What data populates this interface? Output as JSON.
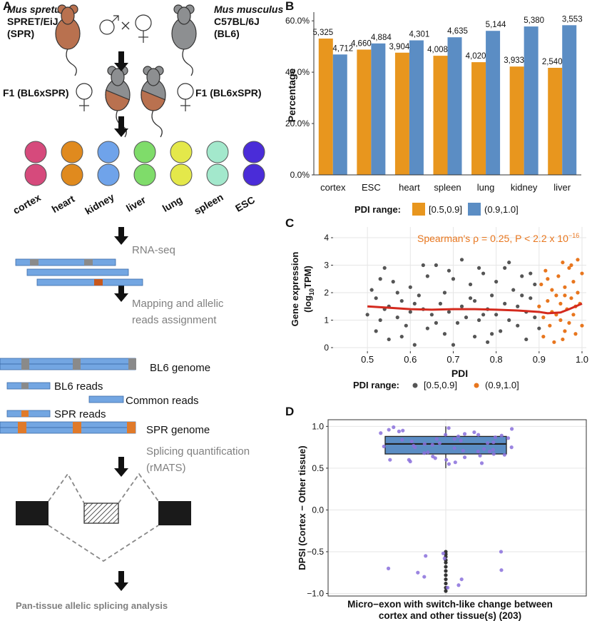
{
  "panel_labels": [
    "A",
    "B",
    "C",
    "D"
  ],
  "diagram": {
    "parent_left": {
      "species": "Mus spretus",
      "strain": "SPRET/EiJ",
      "abbr": "(SPR)"
    },
    "parent_right": {
      "species": "Mus musculus",
      "strain": "C57BL/6J",
      "abbr": "(BL6)"
    },
    "f1_left": "F1 (BL6xSPR)",
    "f1_right": "F1 (BL6xSPR)",
    "tissues": [
      {
        "label": "cortex",
        "color": "#d64a7c"
      },
      {
        "label": "heart",
        "color": "#e08a1e"
      },
      {
        "label": "kidney",
        "color": "#6fa3ea"
      },
      {
        "label": "liver",
        "color": "#7fdc6a"
      },
      {
        "label": "lung",
        "color": "#e4e84a"
      },
      {
        "label": "spleen",
        "color": "#a3e8cc"
      },
      {
        "label": "ESC",
        "color": "#4a2cd8"
      }
    ],
    "steps": [
      "RNA-seq",
      "Mapping and allelic",
      "reads assignment",
      "Splicing quantification",
      "(rMATS)"
    ],
    "reads": {
      "bl6_genome": "BL6 genome",
      "bl6_reads": "BL6 reads",
      "common_reads": "Common reads",
      "spr_reads": "SPR reads",
      "spr_genome": "SPR genome"
    },
    "final": "Pan-tissue allelic splicing analysis"
  },
  "chart_data": [
    {
      "type": "bar",
      "y_label": "Percentage",
      "categories": [
        "cortex",
        "ESC",
        "heart",
        "spleen",
        "lung",
        "kidney",
        "liver"
      ],
      "series": [
        {
          "name": "[0.5,0.9]",
          "color": "#e8961e",
          "values": [
            53.1,
            48.8,
            47.6,
            46.4,
            43.9,
            42.2,
            41.7
          ],
          "counts": [
            {
              "value": 5325,
              "label": "5,325"
            },
            {
              "value": 4660,
              "label": "4,660"
            },
            {
              "value": 3904,
              "label": "3,904"
            },
            {
              "value": 4008,
              "label": "4,008"
            },
            {
              "value": 4020,
              "label": "4,020"
            },
            {
              "value": 3933,
              "label": "3,933"
            },
            {
              "value": 2540,
              "label": "2,540"
            }
          ]
        },
        {
          "name": "(0.9,1.0]",
          "color": "#5b8dc4",
          "values": [
            46.9,
            51.2,
            52.4,
            53.6,
            56.1,
            57.8,
            58.3
          ],
          "counts": [
            {
              "value": 4712,
              "label": "4,712"
            },
            {
              "value": 4884,
              "label": "4,884"
            },
            {
              "value": 4301,
              "label": "4,301"
            },
            {
              "value": 4635,
              "label": "4,635"
            },
            {
              "value": 5144,
              "label": "5,144"
            },
            {
              "value": 5380,
              "label": "5,380"
            },
            {
              "value": 3553,
              "label": "3,553"
            }
          ]
        }
      ],
      "ylim": [
        0,
        62
      ],
      "yticks": [
        {
          "value": 0,
          "label": "0.0%"
        },
        {
          "value": 20,
          "label": "20.0%"
        },
        {
          "value": 40,
          "label": "40.0%"
        },
        {
          "value": 60,
          "label": "60.0%"
        }
      ],
      "legend_title": "PDI range:",
      "legend": "bottom"
    },
    {
      "type": "scatter",
      "x_label": "PDI",
      "y_label": {
        "line1": "Gene expression",
        "pre": "(log",
        "sub": "10",
        "post": "TPM)"
      },
      "annotation": {
        "text": "Spearman's ρ = 0.25, P < 2.2 x 10",
        "sup": "−16",
        "color": "#e8761e"
      },
      "xlim": [
        0.42,
        1.01
      ],
      "xticks": [
        0.5,
        0.6,
        0.7,
        0.8,
        0.9,
        {
          "value": 1,
          "label": "1.0"
        }
      ],
      "ylim": [
        -0.13,
        4.39
      ],
      "yticks": [
        0,
        1,
        2,
        3,
        4
      ],
      "grid": true,
      "legend_title": "PDI range:",
      "legend": "bottom",
      "series": [
        {
          "name": "[0.5,0.9]",
          "color": "#555555",
          "x": [
            0.5,
            0.51,
            0.52,
            0.52,
            0.53,
            0.54,
            0.55,
            0.55,
            0.56,
            0.57,
            0.58,
            0.59,
            0.6,
            0.6,
            0.61,
            0.62,
            0.63,
            0.64,
            0.64,
            0.65,
            0.66,
            0.67,
            0.68,
            0.68,
            0.69,
            0.7,
            0.71,
            0.72,
            0.72,
            0.73,
            0.74,
            0.75,
            0.75,
            0.76,
            0.77,
            0.78,
            0.78,
            0.79,
            0.8,
            0.8,
            0.81,
            0.82,
            0.82,
            0.83,
            0.84,
            0.85,
            0.85,
            0.86,
            0.87,
            0.87,
            0.88,
            0.89,
            0.89,
            0.9,
            0.53,
            0.58,
            0.63,
            0.7,
            0.76,
            0.83,
            0.66,
            0.74,
            0.57,
            0.61,
            0.69,
            0.79,
            0.86,
            0.54,
            0.77,
            0.88
          ],
          "y": [
            1.2,
            2.1,
            0.6,
            1.8,
            1.0,
            2.9,
            1.5,
            0.3,
            2.4,
            1.1,
            1.7,
            0.8,
            2.2,
            1.3,
            0.1,
            1.9,
            1.4,
            2.6,
            0.7,
            1.2,
            3.0,
            1.6,
            0.5,
            2.0,
            1.3,
            2.5,
            0.9,
            1.5,
            3.2,
            1.1,
            2.3,
            0.4,
            1.7,
            1.0,
            2.7,
            1.4,
            0.2,
            1.9,
            1.2,
            2.4,
            0.6,
            1.6,
            2.9,
            1.0,
            2.1,
            0.8,
            1.5,
            2.6,
            1.3,
            0.3,
            1.8,
            1.1,
            2.3,
            0.7,
            2.5,
            0.4,
            3.0,
            0.1,
            2.9,
            3.1,
            0.9,
            1.8,
            2.0,
            1.6,
            2.8,
            0.5,
            1.9,
            1.4,
            1.2,
            2.7
          ]
        },
        {
          "name": "(0.9,1.0]",
          "color": "#e8761e",
          "x": [
            0.9,
            0.905,
            0.91,
            0.91,
            0.915,
            0.92,
            0.925,
            0.93,
            0.93,
            0.935,
            0.94,
            0.945,
            0.95,
            0.95,
            0.955,
            0.96,
            0.96,
            0.965,
            0.97,
            0.97,
            0.975,
            0.98,
            0.98,
            0.985,
            0.99,
            0.99,
            0.995,
            1.0,
            1.0,
            0.975,
            0.955,
            0.92,
            0.94,
            0.985,
            0.96
          ],
          "y": [
            1.5,
            2.3,
            0.4,
            1.1,
            2.8,
            1.7,
            0.8,
            2.1,
            1.3,
            0.2,
            1.9,
            2.6,
            1.0,
            1.6,
            3.1,
            0.6,
            2.2,
            1.4,
            2.9,
            0.9,
            1.8,
            2.4,
            1.2,
            0.5,
            3.2,
            2.0,
            1.6,
            2.7,
            0.8,
            3.0,
            0.3,
            2.5,
            1.2,
            1.5,
            1.9
          ]
        }
      ],
      "trend": {
        "color": "#d42a1e",
        "x": [
          0.5,
          0.55,
          0.6,
          0.65,
          0.7,
          0.75,
          0.8,
          0.85,
          0.9,
          0.92,
          0.95,
          0.97,
          1.0
        ],
        "y": [
          1.5,
          1.45,
          1.4,
          1.38,
          1.4,
          1.4,
          1.38,
          1.35,
          1.3,
          1.25,
          1.28,
          1.4,
          1.6
        ]
      }
    },
    {
      "type": "box",
      "y_label": "DPSI (Cortex − Other tissue)",
      "x_label": [
        "Micro−exon with switch-like change between",
        "cortex and other tissue(s) (203)"
      ],
      "ylim": [
        -1.03,
        1.08
      ],
      "grid": true,
      "yticks": [
        {
          "value": -1,
          "label": "−1.0"
        },
        {
          "value": -0.5,
          "label": "−0.5"
        },
        {
          "value": 0,
          "label": "0.0"
        },
        {
          "value": 0.5,
          "label": "0.5"
        },
        {
          "value": 1,
          "label": "1.0"
        }
      ],
      "box": {
        "color": "#5b8dc4",
        "whisker_low": 0.5,
        "q1": 0.67,
        "median": 0.79,
        "q3": 0.88,
        "whisker_high": 1.0,
        "outliers": [
          -0.5,
          -0.53,
          -0.56,
          -0.6,
          -0.63,
          -0.68,
          -0.73,
          -0.78,
          -0.83,
          -0.88,
          -0.93,
          -0.97
        ]
      },
      "points": {
        "color": "#8a70dc",
        "values": [
          0.95,
          0.9,
          0.85,
          0.8,
          0.75,
          0.7,
          0.65,
          0.6,
          0.55,
          0.98,
          0.92,
          0.88,
          0.83,
          0.78,
          0.72,
          0.68,
          0.62,
          0.58,
          0.97,
          0.93,
          0.87,
          0.81,
          0.76,
          0.71,
          0.66,
          0.6,
          0.56,
          0.94,
          0.89,
          0.84,
          0.79,
          0.74,
          0.69,
          0.64,
          0.57,
          0.99,
          0.91,
          0.86,
          0.82,
          0.77,
          0.73,
          0.67,
          0.63,
          0.96,
          0.9,
          0.8,
          0.7,
          0.6,
          0.85,
          0.75,
          -0.5,
          -0.52,
          -0.55,
          -0.58,
          -0.7,
          -0.72,
          -0.75,
          -0.8,
          -0.83,
          -0.9,
          -0.93
        ]
      }
    }
  ]
}
